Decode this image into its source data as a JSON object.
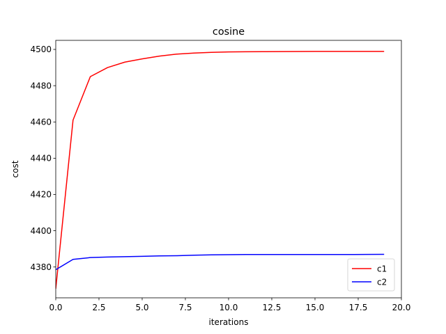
{
  "chart_data": {
    "type": "line",
    "title": "cosine",
    "xlabel": "iterations",
    "ylabel": "cost",
    "xlim": [
      0,
      20
    ],
    "ylim": [
      4363,
      4505
    ],
    "xticks": [
      0.0,
      2.5,
      5.0,
      7.5,
      10.0,
      12.5,
      15.0,
      17.5,
      20.0
    ],
    "xtick_labels": [
      "0.0",
      "2.5",
      "5.0",
      "7.5",
      "10.0",
      "12.5",
      "15.0",
      "17.5",
      "20.0"
    ],
    "yticks": [
      4380,
      4400,
      4420,
      4440,
      4460,
      4480,
      4500
    ],
    "ytick_labels": [
      "4380",
      "4400",
      "4420",
      "4440",
      "4460",
      "4480",
      "4500"
    ],
    "grid": false,
    "legend_position": "lower-right",
    "x": [
      0,
      1,
      2,
      3,
      4,
      5,
      6,
      7,
      8,
      9,
      10,
      11,
      12,
      13,
      14,
      15,
      16,
      17,
      18,
      19
    ],
    "series": [
      {
        "name": "c1",
        "color": "#ff0000",
        "values": [
          4368,
          4461,
          4485,
          4490,
          4493,
          4494.8,
          4496.3,
          4497.4,
          4498,
          4498.4,
          4498.6,
          4498.7,
          4498.75,
          4498.8,
          4498.85,
          4498.9,
          4498.9,
          4498.9,
          4498.9,
          4498.9
        ]
      },
      {
        "name": "c2",
        "color": "#0000ff",
        "values": [
          4378.5,
          4384.2,
          4385.2,
          4385.5,
          4385.7,
          4385.9,
          4386.1,
          4386.2,
          4386.5,
          4386.7,
          4386.8,
          4386.9,
          4386.9,
          4386.9,
          4386.9,
          4386.9,
          4386.9,
          4386.9,
          4386.95,
          4387
        ]
      }
    ]
  }
}
